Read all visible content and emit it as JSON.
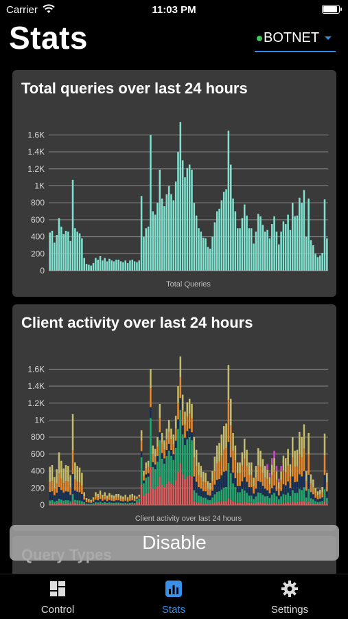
{
  "status_bar": {
    "carrier": "Carrier",
    "time": "11:03 PM"
  },
  "header": {
    "title": "Stats"
  },
  "server_selector": {
    "label": "BOTNET",
    "status_color": "#3fc35a"
  },
  "cards": [
    {
      "title": "Total queries over last 24 hours"
    },
    {
      "title": "Client activity over last 24 hours"
    },
    {
      "title": "Query Types"
    }
  ],
  "disable_button": {
    "label": "Disable"
  },
  "tabs": [
    {
      "label": "Control",
      "icon": "dashboard-grid-icon"
    },
    {
      "label": "Stats",
      "icon": "bar-chart-icon"
    },
    {
      "label": "Settings",
      "icon": "gear-icon"
    }
  ],
  "colors": {
    "accent": "#3a8fe8",
    "total_bar": "#7fe3d0",
    "client_series": [
      "#e05c5c",
      "#1fa870",
      "#122f5a",
      "#e8892a",
      "#c6bc6a",
      "#c44fc0"
    ]
  },
  "chart_data": [
    {
      "type": "bar",
      "title": "Total queries over last 24 hours",
      "xlabel": "Total Queries",
      "ylim": [
        0,
        1700
      ],
      "yticks": [
        "0",
        "200",
        "400",
        "600",
        "800",
        "1K",
        "1.2K",
        "1.4K",
        "1.6K"
      ],
      "grid": true,
      "series": [
        {
          "values": [
            450,
            470,
            330,
            420,
            620,
            520,
            430,
            470,
            460,
            350,
            1070,
            500,
            460,
            440,
            380,
            150,
            80,
            70,
            60,
            90,
            150,
            130,
            170,
            120,
            150,
            110,
            140,
            120,
            110,
            130,
            130,
            110,
            100,
            120,
            90,
            120,
            130,
            110,
            100,
            120,
            880,
            400,
            500,
            520,
            1600,
            700,
            660,
            800,
            1190,
            850,
            760,
            900,
            1000,
            900,
            830,
            1050,
            1400,
            1750,
            1300,
            1100,
            1210,
            1250,
            1190,
            800,
            650,
            500,
            460,
            390,
            380,
            280,
            260,
            400,
            570,
            700,
            730,
            830,
            930,
            960,
            1650,
            1250,
            850,
            700,
            500,
            500,
            620,
            780,
            650,
            500,
            500,
            320,
            460,
            670,
            640,
            540,
            460,
            480,
            380,
            550,
            640,
            460,
            310,
            460,
            580,
            550,
            660,
            480,
            800,
            640,
            650,
            860,
            800,
            950,
            400,
            850,
            360,
            300,
            200,
            160,
            180,
            210,
            840,
            380
          ]
        }
      ]
    },
    {
      "type": "bar",
      "title": "Client activity over last 24 hours",
      "xlabel": "Client activity over last 24 hours",
      "ylim": [
        0,
        1700
      ],
      "yticks": [
        "0",
        "200",
        "400",
        "600",
        "800",
        "1K",
        "1.2K",
        "1.4K",
        "1.6K"
      ],
      "grid": true,
      "stacked": true,
      "series_count": 6
    }
  ]
}
